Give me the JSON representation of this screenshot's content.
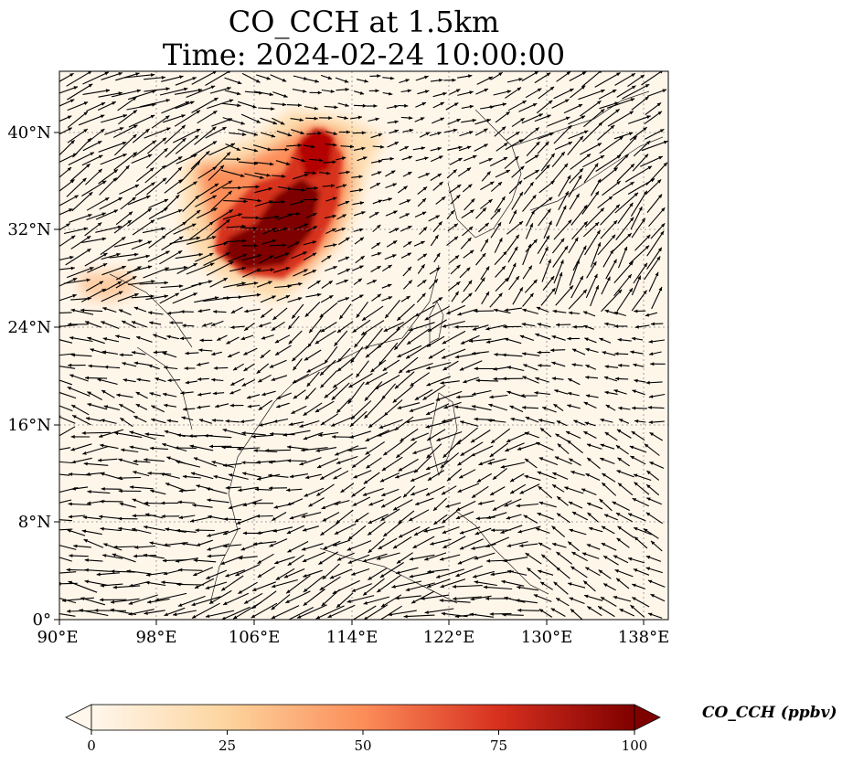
{
  "title_line1": "CO_CCH at 1.5km",
  "title_line2": "Time: 2024-02-24 10:00:00",
  "x_ticks": [
    "90°E",
    "98°E",
    "106°E",
    "114°E",
    "122°E",
    "130°E",
    "138°E"
  ],
  "y_ticks": [
    "0°",
    "8°N",
    "16°N",
    "24°N",
    "32°N",
    "40°N"
  ],
  "colorbar": {
    "label": "CO_CCH (ppbv)",
    "ticks": [
      "0",
      "25",
      "50",
      "75",
      "100"
    ],
    "min": 0,
    "max": 100,
    "extend": "both",
    "colormap": "OrRd",
    "colors": [
      "#fff7ec",
      "#fdd49e",
      "#fc8d59",
      "#d7301f",
      "#7f0000"
    ]
  },
  "map": {
    "lon_range": [
      90,
      140
    ],
    "lat_range": [
      0,
      45
    ],
    "gridlines": "dotted",
    "arrow_color": "#000000",
    "plume": {
      "center_lon": 108,
      "center_lat": 33,
      "peak_ppbv": 100
    }
  }
}
